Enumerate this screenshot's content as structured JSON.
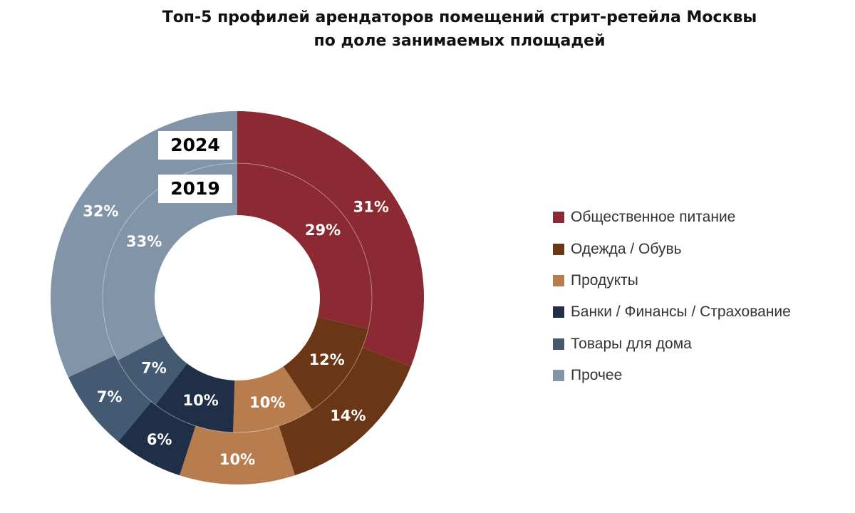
{
  "title": {
    "line1": "Топ-5 профилей арендаторов помещений стрит-ретейла Москвы",
    "line2": "по доле занимаемых площадей"
  },
  "chart_data": {
    "type": "donut",
    "title": "Топ-5 профилей арендаторов помещений стрит-ретейла Москвы по доле занимаемых площадей",
    "categories": [
      "Общественное питание",
      "Одежда / Обувь",
      "Продукты",
      "Банки / Финансы / Страхование",
      "Товары для дома",
      "Прочее"
    ],
    "colors": [
      "#8B2A32",
      "#6B3615",
      "#B87D4F",
      "#1F2F47",
      "#445A72",
      "#8294A8"
    ],
    "series": [
      {
        "name": "2024",
        "ring": "outer",
        "values": [
          31,
          14,
          10,
          6,
          7,
          32
        ],
        "labels": [
          "31%",
          "14%",
          "10%",
          "6%",
          "7%",
          "32%"
        ]
      },
      {
        "name": "2019",
        "ring": "inner",
        "values": [
          29,
          12,
          10,
          10,
          7,
          33
        ],
        "labels": [
          "29%",
          "12%",
          "10%",
          "10%",
          "7%",
          "33%"
        ]
      }
    ],
    "legend_position": "right"
  }
}
